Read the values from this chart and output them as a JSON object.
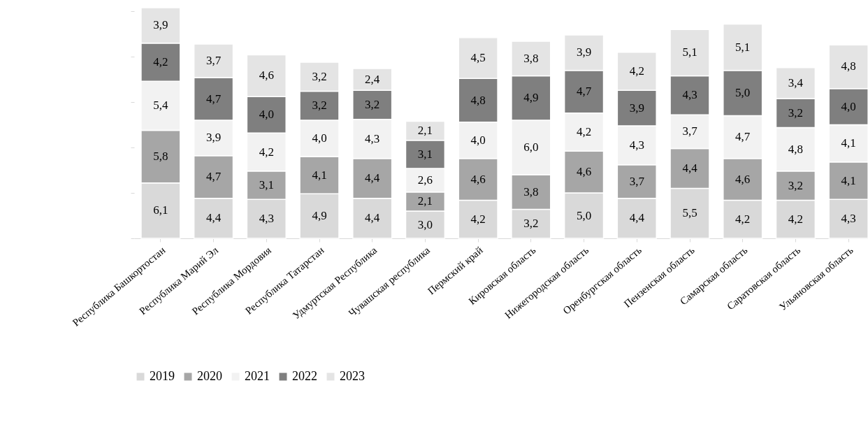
{
  "chart_data": {
    "type": "bar",
    "stacked": true,
    "legend": "bottom",
    "grid": false,
    "categories": [
      "Республика Башкортостан",
      "Республика Марий Эл",
      "Республика Мордовия",
      "Республика Татарстан",
      "Удмуртская Республика",
      "Чувашская республика",
      "Пермский край",
      "Кировская область",
      "Нижегородская область",
      "Оренбургская область",
      "Пензенская область",
      "Самарская область",
      "Саратовская область",
      "Ульяновская область"
    ],
    "series": [
      {
        "name": "2019",
        "color": "#d9d9d9",
        "values": [
          6.1,
          4.4,
          4.3,
          4.9,
          4.4,
          3.0,
          4.2,
          3.2,
          5.0,
          4.4,
          5.5,
          4.2,
          4.2,
          4.3
        ],
        "value_labels": [
          "6,1",
          "4,4",
          "4,3",
          "4,9",
          "4,4",
          "3,0",
          "4,2",
          "3,2",
          "5,0",
          "4,4",
          "5,5",
          "4,2",
          "4,2",
          "4,3"
        ]
      },
      {
        "name": "2020",
        "color": "#a6a6a6",
        "values": [
          5.8,
          4.7,
          3.1,
          4.1,
          4.4,
          2.1,
          4.6,
          3.8,
          4.6,
          3.7,
          4.4,
          4.6,
          3.2,
          4.1
        ],
        "value_labels": [
          "5,8",
          "4,7",
          "3,1",
          "4,1",
          "4,4",
          "2,1",
          "4,6",
          "3,8",
          "4,6",
          "3,7",
          "4,4",
          "4,6",
          "3,2",
          "4,1"
        ]
      },
      {
        "name": "2021",
        "color": "#f2f2f2",
        "values": [
          5.4,
          3.9,
          4.2,
          4.0,
          4.3,
          2.6,
          4.0,
          6.0,
          4.2,
          4.3,
          3.7,
          4.7,
          4.8,
          4.1
        ],
        "value_labels": [
          "5,4",
          "3,9",
          "4,2",
          "4,0",
          "4,3",
          "2,6",
          "4,0",
          "6,0",
          "4,2",
          "4,3",
          "3,7",
          "4,7",
          "4,8",
          "4,1"
        ]
      },
      {
        "name": "2022",
        "color": "#7f7f7f",
        "values": [
          4.2,
          4.7,
          4.0,
          3.2,
          3.2,
          3.1,
          4.8,
          4.9,
          4.7,
          3.9,
          4.3,
          5.0,
          3.2,
          4.0
        ],
        "value_labels": [
          "4,2",
          "4,7",
          "4,0",
          "3,2",
          "3,2",
          "3,1",
          "4,8",
          "4,9",
          "4,7",
          "3,9",
          "4,3",
          "5,0",
          "3,2",
          "4,0"
        ]
      },
      {
        "name": "2023",
        "color": "#e4e4e4",
        "values": [
          3.9,
          3.7,
          4.6,
          3.2,
          2.4,
          2.1,
          4.5,
          3.8,
          3.9,
          4.2,
          5.1,
          5.1,
          3.4,
          4.8
        ],
        "value_labels": [
          "3,9",
          "3,7",
          "4,6",
          "3,2",
          "2,4",
          "2,1",
          "4,5",
          "3,8",
          "3,9",
          "4,2",
          "5,1",
          "5,1",
          "3,4",
          "4,8"
        ]
      }
    ]
  }
}
